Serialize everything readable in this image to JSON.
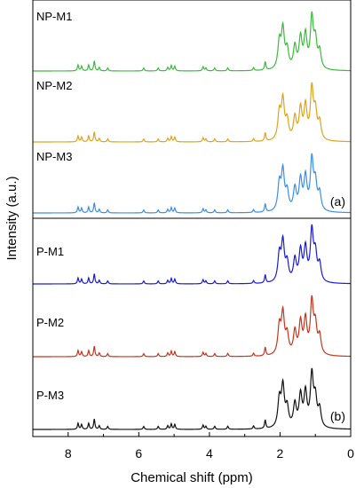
{
  "chart_data": {
    "type": "line",
    "xlabel": "Chemical shift (ppm)",
    "ylabel": "Intensity (a.u.)",
    "xlim": [
      9,
      0
    ],
    "x_reversed": true,
    "x_ticks": [
      "8",
      "6",
      "4",
      "2",
      "0"
    ],
    "x_tick_values": [
      8,
      6,
      4,
      2,
      0
    ],
    "grid": false,
    "legend": "none",
    "panels": [
      {
        "label": "(a)",
        "series": [
          {
            "name": "NP-M1",
            "color": "#3dbb3d"
          },
          {
            "name": "NP-M2",
            "color": "#e0a31a"
          },
          {
            "name": "NP-M3",
            "color": "#3a8fe8"
          }
        ]
      },
      {
        "label": "(b)",
        "series": [
          {
            "name": "P-M1",
            "color": "#1a1ad8"
          },
          {
            "name": "P-M2",
            "color": "#c8341c"
          },
          {
            "name": "P-M3",
            "color": "#111111"
          }
        ]
      }
    ],
    "peaks": [
      {
        "ppm": 7.72,
        "height": 0.1
      },
      {
        "ppm": 7.62,
        "height": 0.08
      },
      {
        "ppm": 7.42,
        "height": 0.1
      },
      {
        "ppm": 7.26,
        "height": 0.17
      },
      {
        "ppm": 7.12,
        "height": 0.06
      },
      {
        "ppm": 6.88,
        "height": 0.05
      },
      {
        "ppm": 5.86,
        "height": 0.05
      },
      {
        "ppm": 5.45,
        "height": 0.05
      },
      {
        "ppm": 5.18,
        "height": 0.06
      },
      {
        "ppm": 5.08,
        "height": 0.09
      },
      {
        "ppm": 4.98,
        "height": 0.08
      },
      {
        "ppm": 4.18,
        "height": 0.07
      },
      {
        "ppm": 4.1,
        "height": 0.05
      },
      {
        "ppm": 3.85,
        "height": 0.05
      },
      {
        "ppm": 3.48,
        "height": 0.05
      },
      {
        "ppm": 2.75,
        "height": 0.05
      },
      {
        "ppm": 2.42,
        "height": 0.14
      },
      {
        "ppm": 2.02,
        "height": 0.46
      },
      {
        "ppm": 1.92,
        "height": 0.66
      },
      {
        "ppm": 1.8,
        "height": 0.32
      },
      {
        "ppm": 1.58,
        "height": 0.38
      },
      {
        "ppm": 1.42,
        "height": 0.52
      },
      {
        "ppm": 1.28,
        "height": 0.56
      },
      {
        "ppm": 1.1,
        "height": 0.85
      },
      {
        "ppm": 1.0,
        "height": 0.45
      },
      {
        "ppm": 0.88,
        "height": 0.3
      }
    ]
  }
}
